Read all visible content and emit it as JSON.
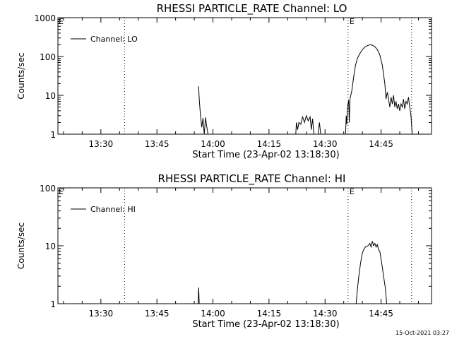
{
  "footer": {
    "timestamp": "15-Oct-2021 03:27"
  },
  "chart_data": [
    {
      "type": "line",
      "title": "RHESSI PARTICLE_RATE Channel: LO",
      "xlabel": "Start Time (23-Apr-02 13:18:30)",
      "ylabel": "Counts/sec",
      "yscale": "log",
      "xlim": [
        "13:18:30",
        "14:58:30"
      ],
      "ylim": [
        1,
        1000
      ],
      "xticks": [
        "13:30",
        "13:45",
        "14:00",
        "14:15",
        "14:30",
        "14:45"
      ],
      "yticks": [
        1,
        10,
        100,
        1000
      ],
      "ytick_labels": [
        "1",
        "10",
        "100",
        "1000"
      ],
      "legend": {
        "position": "top-left",
        "entries": [
          "Channel: LO"
        ]
      },
      "vlines": [
        {
          "x": "13:36:20",
          "label": ""
        },
        {
          "x": "14:36:10",
          "label": "E"
        },
        {
          "x": "14:53:10",
          "label": ""
        }
      ],
      "markers_left": [
        "E"
      ],
      "grid": false,
      "series": [
        {
          "name": "Channel: LO",
          "segments": [
            [
              [
                "13:56:00",
                17
              ],
              [
                "13:56:10",
                16
              ],
              [
                "13:56:20",
                8
              ],
              [
                "13:56:40",
                3
              ],
              [
                "13:57:00",
                1.5
              ],
              [
                "13:57:20",
                2.6
              ],
              [
                "13:57:40",
                1
              ],
              [
                "13:58:00",
                2.7
              ],
              [
                "13:58:20",
                1.6
              ],
              [
                "13:58:40",
                1
              ]
            ],
            [
              [
                "14:22:10",
                1
              ],
              [
                "14:22:20",
                2
              ],
              [
                "14:22:40",
                1.3
              ],
              [
                "14:23:00",
                2
              ],
              [
                "14:23:30",
                1.8
              ],
              [
                "14:24:00",
                2.8
              ],
              [
                "14:24:30",
                2
              ],
              [
                "14:25:00",
                3
              ],
              [
                "14:25:30",
                2.2
              ],
              [
                "14:26:00",
                2.8
              ],
              [
                "14:26:20",
                1.3
              ],
              [
                "14:26:40",
                2.5
              ],
              [
                "14:27:00",
                1
              ]
            ],
            [
              [
                "14:28:10",
                1
              ],
              [
                "14:28:30",
                2
              ],
              [
                "14:28:50",
                1
              ]
            ],
            [
              [
                "14:35:30",
                1
              ],
              [
                "14:35:40",
                3
              ],
              [
                "14:35:50",
                1.8
              ],
              [
                "14:36:00",
                5
              ],
              [
                "14:36:20",
                7.5
              ],
              [
                "14:36:30",
                2
              ],
              [
                "14:36:40",
                8
              ],
              [
                "14:37:10",
                13
              ],
              [
                "14:37:40",
                30
              ],
              [
                "14:38:10",
                60
              ],
              [
                "14:38:40",
                90
              ],
              [
                "14:39:20",
                120
              ],
              [
                "14:40:00",
                150
              ],
              [
                "14:40:40",
                175
              ],
              [
                "14:41:20",
                190
              ],
              [
                "14:42:00",
                200
              ],
              [
                "14:42:40",
                195
              ],
              [
                "14:43:20",
                180
              ],
              [
                "14:44:00",
                150
              ],
              [
                "14:44:40",
                110
              ],
              [
                "14:45:20",
                60
              ],
              [
                "14:46:00",
                20
              ],
              [
                "14:46:20",
                8
              ],
              [
                "14:46:40",
                12
              ],
              [
                "14:47:00",
                8
              ],
              [
                "14:47:20",
                5
              ],
              [
                "14:47:40",
                9
              ],
              [
                "14:48:00",
                6
              ],
              [
                "14:48:20",
                10
              ],
              [
                "14:48:40",
                5
              ],
              [
                "14:49:00",
                7
              ],
              [
                "14:49:20",
                4.5
              ],
              [
                "14:49:40",
                6
              ],
              [
                "14:50:00",
                4
              ],
              [
                "14:50:20",
                6
              ],
              [
                "14:50:40",
                5
              ],
              [
                "14:51:00",
                8
              ],
              [
                "14:51:20",
                4.5
              ],
              [
                "14:51:40",
                7
              ],
              [
                "14:52:00",
                6
              ],
              [
                "14:52:20",
                9
              ],
              [
                "14:52:40",
                5
              ],
              [
                "14:53:00",
                3
              ],
              [
                "14:53:20",
                1
              ]
            ]
          ]
        }
      ]
    },
    {
      "type": "line",
      "title": "RHESSI PARTICLE_RATE Channel: HI",
      "xlabel": "Start Time (23-Apr-02 13:18:30)",
      "ylabel": "Counts/sec",
      "yscale": "log",
      "xlim": [
        "13:18:30",
        "14:58:30"
      ],
      "ylim": [
        1,
        100
      ],
      "xticks": [
        "13:30",
        "13:45",
        "14:00",
        "14:15",
        "14:30",
        "14:45"
      ],
      "yticks": [
        1,
        10,
        100
      ],
      "ytick_labels": [
        "1",
        "10",
        "100"
      ],
      "legend": {
        "position": "top-left",
        "entries": [
          "Channel: HI"
        ]
      },
      "vlines": [
        {
          "x": "13:36:20",
          "label": ""
        },
        {
          "x": "14:36:10",
          "label": "E"
        },
        {
          "x": "14:53:10",
          "label": ""
        }
      ],
      "markers_left": [
        "E"
      ],
      "grid": false,
      "series": [
        {
          "name": "Channel: HI",
          "segments": [
            [
              [
                "13:56:00",
                1
              ],
              [
                "13:56:10",
                1.9
              ],
              [
                "13:56:20",
                1
              ]
            ],
            [
              [
                "14:38:20",
                1
              ],
              [
                "14:38:40",
                1.8
              ],
              [
                "14:39:00",
                2.8
              ],
              [
                "14:39:30",
                5
              ],
              [
                "14:40:00",
                7.5
              ],
              [
                "14:40:30",
                9
              ],
              [
                "14:41:00",
                9.8
              ],
              [
                "14:41:30",
                10
              ],
              [
                "14:42:00",
                11
              ],
              [
                "14:42:20",
                9.5
              ],
              [
                "14:42:40",
                12
              ],
              [
                "14:43:00",
                10
              ],
              [
                "14:43:20",
                11
              ],
              [
                "14:43:40",
                9.5
              ],
              [
                "14:44:00",
                10.5
              ],
              [
                "14:44:20",
                8.5
              ],
              [
                "14:44:40",
                8
              ],
              [
                "14:45:10",
                5
              ],
              [
                "14:45:40",
                3
              ],
              [
                "14:46:10",
                1.8
              ],
              [
                "14:46:30",
                1
              ]
            ]
          ]
        }
      ]
    }
  ]
}
